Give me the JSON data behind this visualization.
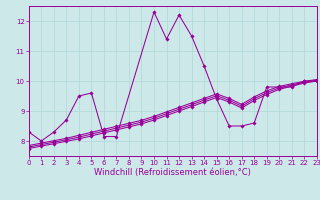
{
  "title": "",
  "xlabel": "Windchill (Refroidissement éolien,°C)",
  "bg_color": "#cce8e8",
  "line_color": "#990099",
  "xlim": [
    0,
    23
  ],
  "ylim": [
    7.5,
    12.5
  ],
  "yticks": [
    8,
    9,
    10,
    11,
    12
  ],
  "xticks": [
    0,
    1,
    2,
    3,
    4,
    5,
    6,
    7,
    8,
    9,
    10,
    11,
    12,
    13,
    14,
    15,
    16,
    17,
    18,
    19,
    20,
    21,
    22,
    23
  ],
  "series": [
    {
      "x": [
        0,
        1,
        2,
        3,
        4,
        5,
        6,
        7,
        10,
        11,
        12,
        13,
        14,
        15,
        16,
        17,
        18,
        19,
        20,
        21,
        22,
        23
      ],
      "y": [
        8.3,
        8.0,
        8.3,
        8.7,
        9.5,
        9.6,
        8.15,
        8.15,
        12.3,
        11.4,
        12.2,
        11.5,
        10.5,
        9.4,
        8.5,
        8.5,
        8.6,
        9.8,
        9.8,
        9.8,
        10.0,
        10.0
      ]
    },
    {
      "x": [
        0,
        1,
        2,
        3,
        4,
        5,
        6,
        7,
        8,
        9,
        10,
        11,
        12,
        13,
        14,
        15,
        16,
        17,
        18,
        19,
        20,
        21,
        22,
        23
      ],
      "y": [
        7.75,
        7.83,
        7.91,
        7.99,
        8.07,
        8.17,
        8.27,
        8.37,
        8.47,
        8.57,
        8.7,
        8.85,
        9.0,
        9.15,
        9.3,
        9.45,
        9.3,
        9.1,
        9.35,
        9.55,
        9.72,
        9.83,
        9.93,
        10.0
      ]
    },
    {
      "x": [
        0,
        1,
        2,
        3,
        4,
        5,
        6,
        7,
        8,
        9,
        10,
        11,
        12,
        13,
        14,
        15,
        16,
        17,
        18,
        19,
        20,
        21,
        22,
        23
      ],
      "y": [
        7.8,
        7.88,
        7.96,
        8.04,
        8.13,
        8.23,
        8.33,
        8.43,
        8.53,
        8.63,
        8.76,
        8.91,
        9.06,
        9.21,
        9.36,
        9.51,
        9.36,
        9.16,
        9.41,
        9.61,
        9.77,
        9.87,
        9.96,
        10.02
      ]
    },
    {
      "x": [
        0,
        1,
        2,
        3,
        4,
        5,
        6,
        7,
        8,
        9,
        10,
        11,
        12,
        13,
        14,
        15,
        16,
        17,
        18,
        19,
        20,
        21,
        22,
        23
      ],
      "y": [
        7.85,
        7.93,
        8.01,
        8.09,
        8.19,
        8.29,
        8.39,
        8.49,
        8.59,
        8.69,
        8.82,
        8.97,
        9.12,
        9.27,
        9.42,
        9.57,
        9.42,
        9.22,
        9.47,
        9.67,
        9.82,
        9.91,
        9.99,
        10.05
      ]
    }
  ],
  "grid_color": "#b0d8d8",
  "tick_fontsize": 5,
  "xlabel_fontsize": 6,
  "marker": "D",
  "markersize": 1.8,
  "linewidth": 0.75
}
